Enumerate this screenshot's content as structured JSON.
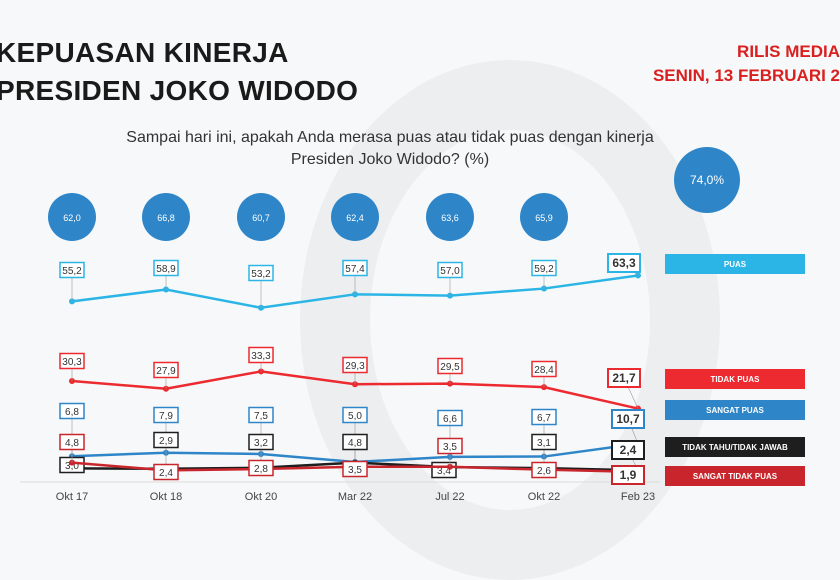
{
  "header": {
    "title_line1": "KEPUASAN KINERJA",
    "title_line2": "PRESIDEN JOKO WIDODO",
    "release_line1": "RILIS MEDIA",
    "release_line2": "SENIN, 13 FEBRUARI 2"
  },
  "question": "Sampai hari ini, apakah Anda merasa puas atau tidak puas dengan kinerja Presiden Joko Widodo? (%)",
  "chart_data": {
    "type": "line",
    "title": "Sampai hari ini, apakah Anda merasa puas atau tidak puas dengan kinerja Presiden Joko Widodo? (%)",
    "categories": [
      "Okt 17",
      "Okt 18",
      "Okt 20",
      "Mar 22",
      "Jul 22",
      "Okt 22",
      "Feb 23"
    ],
    "series": [
      {
        "name": "PUAS",
        "color": "#2bb5e6",
        "values": [
          55.2,
          58.9,
          53.2,
          57.4,
          57.0,
          59.2,
          63.3
        ],
        "labels": [
          "55,2",
          "58,9",
          "53,2",
          "57,4",
          "57,0",
          "59,2",
          "63,3"
        ]
      },
      {
        "name": "TIDAK PUAS",
        "color": "#ec2a2f",
        "values": [
          30.3,
          27.9,
          33.3,
          29.3,
          29.5,
          28.4,
          21.7
        ],
        "labels": [
          "30,3",
          "27,9",
          "33,3",
          "29,3",
          "29,5",
          "28,4",
          "21,7"
        ]
      },
      {
        "name": "SANGAT PUAS",
        "color": "#2e86c9",
        "values": [
          6.8,
          7.9,
          7.5,
          5.0,
          6.6,
          6.7,
          10.7
        ],
        "labels": [
          "6,8",
          "7,9",
          "7,5",
          "5,0",
          "6,6",
          "6,7",
          "10,7"
        ]
      },
      {
        "name": "TIDAK TAHU/TIDAK JAWAB",
        "color": "#1e1e1e",
        "values": [
          3.0,
          2.9,
          3.2,
          4.8,
          3.4,
          3.1,
          2.4
        ],
        "labels": [
          "3,0",
          "2,9",
          "3,2",
          "4,8",
          "3,4",
          "3,1",
          "2,4"
        ]
      },
      {
        "name": "SANGAT TIDAK PUAS",
        "color": "#c8262c",
        "values": [
          4.8,
          2.4,
          2.8,
          3.5,
          3.5,
          2.6,
          1.9
        ],
        "labels": [
          "4,8",
          "2,4",
          "2,8",
          "3,5",
          "3,5",
          "2,6",
          "1,9"
        ]
      }
    ],
    "totals_puas": {
      "color": "#2e86c9",
      "values": [
        62.0,
        66.8,
        60.7,
        62.4,
        63.6,
        65.9,
        74.0
      ],
      "labels": [
        "62,0",
        "66,8",
        "60,7",
        "62,4",
        "63,6",
        "65,9",
        "74,0%"
      ]
    },
    "legend_placement": "right",
    "grid": false
  }
}
